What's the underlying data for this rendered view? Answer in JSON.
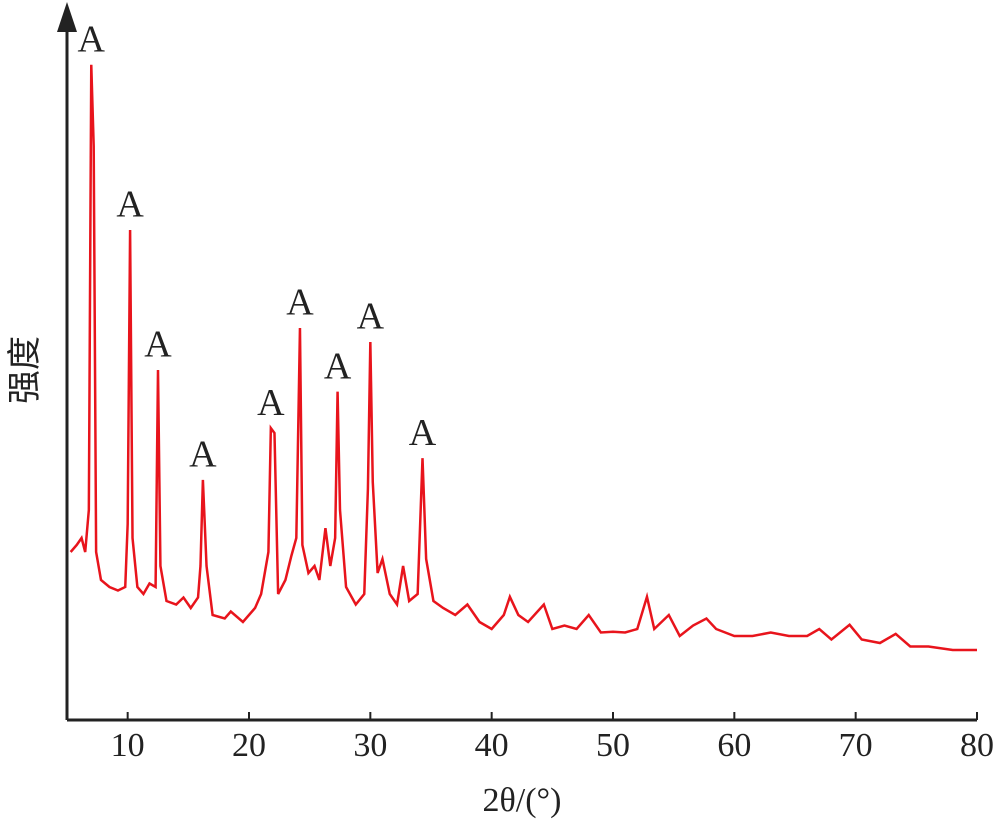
{
  "chart_data": {
    "type": "line",
    "x_label": "2θ/(°)",
    "y_label": "强度",
    "xlim": [
      5,
      80
    ],
    "xticks": [
      10,
      20,
      30,
      40,
      50,
      60,
      70,
      80
    ],
    "ylim": [
      0,
      100
    ],
    "series": [
      {
        "color": "#e8141c",
        "x": [
          5.3,
          5.8,
          6.2,
          6.5,
          6.8,
          7.0,
          7.2,
          7.4,
          7.8,
          8.5,
          9.2,
          9.8,
          10.0,
          10.2,
          10.4,
          10.8,
          11.3,
          11.8,
          12.3,
          12.5,
          12.7,
          13.2,
          14,
          14.6,
          15.2,
          15.8,
          16.0,
          16.2,
          16.5,
          17,
          18,
          18.5,
          19.5,
          20.5,
          21,
          21.6,
          21.8,
          22.1,
          22.4,
          23,
          23.5,
          23.9,
          24.2,
          24.4,
          24.9,
          25.4,
          25.8,
          26.3,
          26.7,
          27.1,
          27.3,
          27.5,
          28,
          28.8,
          29.5,
          29.8,
          30.0,
          30.2,
          30.6,
          31.0,
          31.6,
          32.2,
          32.7,
          33.2,
          33.9,
          34.3,
          34.6,
          35.2,
          36,
          37,
          38,
          39,
          40,
          41,
          41.5,
          42.2,
          43,
          44.3,
          45,
          46,
          47,
          48,
          49,
          50,
          51,
          52,
          52.8,
          53.4,
          54.6,
          55.5,
          56.6,
          57.7,
          58.5,
          60,
          61.5,
          63,
          64.5,
          66,
          67,
          68,
          69.5,
          70.5,
          72,
          73.3,
          74.5,
          76,
          78,
          80
        ],
        "values": [
          24,
          25,
          26,
          24,
          30,
          93.6,
          82,
          24,
          20,
          19,
          18.5,
          19,
          28,
          70,
          26,
          19,
          18,
          19.5,
          19,
          50,
          22,
          17,
          16.5,
          17.5,
          16,
          17.5,
          22,
          34.3,
          22,
          15,
          14.5,
          15.5,
          14,
          16,
          18,
          24,
          41.7,
          41,
          18,
          20,
          23.5,
          26,
          56,
          25,
          21,
          22,
          20,
          27.4,
          22,
          26,
          46.9,
          30,
          19,
          16.5,
          18,
          33,
          54,
          34,
          21,
          23,
          18,
          16.5,
          22,
          17,
          18,
          37.4,
          23,
          17,
          16,
          15,
          16.5,
          14,
          13,
          15,
          17.6,
          15,
          14,
          16.5,
          13,
          13.5,
          13,
          15,
          12.5,
          12.6,
          12.5,
          13,
          17.6,
          13,
          15,
          12,
          13.5,
          14.5,
          13,
          12,
          12,
          12.5,
          12,
          12,
          13,
          11.5,
          13.6,
          11.5,
          11,
          12.3,
          10.5,
          10.5,
          10,
          10
        ]
      }
    ],
    "annotations": [
      {
        "text": "A",
        "x": 7.0,
        "y": 93.6
      },
      {
        "text": "A",
        "x": 10.2,
        "y": 70
      },
      {
        "text": "A",
        "x": 12.5,
        "y": 50
      },
      {
        "text": "A",
        "x": 16.2,
        "y": 34.3
      },
      {
        "text": "A",
        "x": 21.8,
        "y": 41.7
      },
      {
        "text": "A",
        "x": 24.2,
        "y": 56
      },
      {
        "text": "A",
        "x": 27.3,
        "y": 46.9
      },
      {
        "text": "A",
        "x": 30.0,
        "y": 54
      },
      {
        "text": "A",
        "x": 34.3,
        "y": 37.4
      }
    ]
  }
}
